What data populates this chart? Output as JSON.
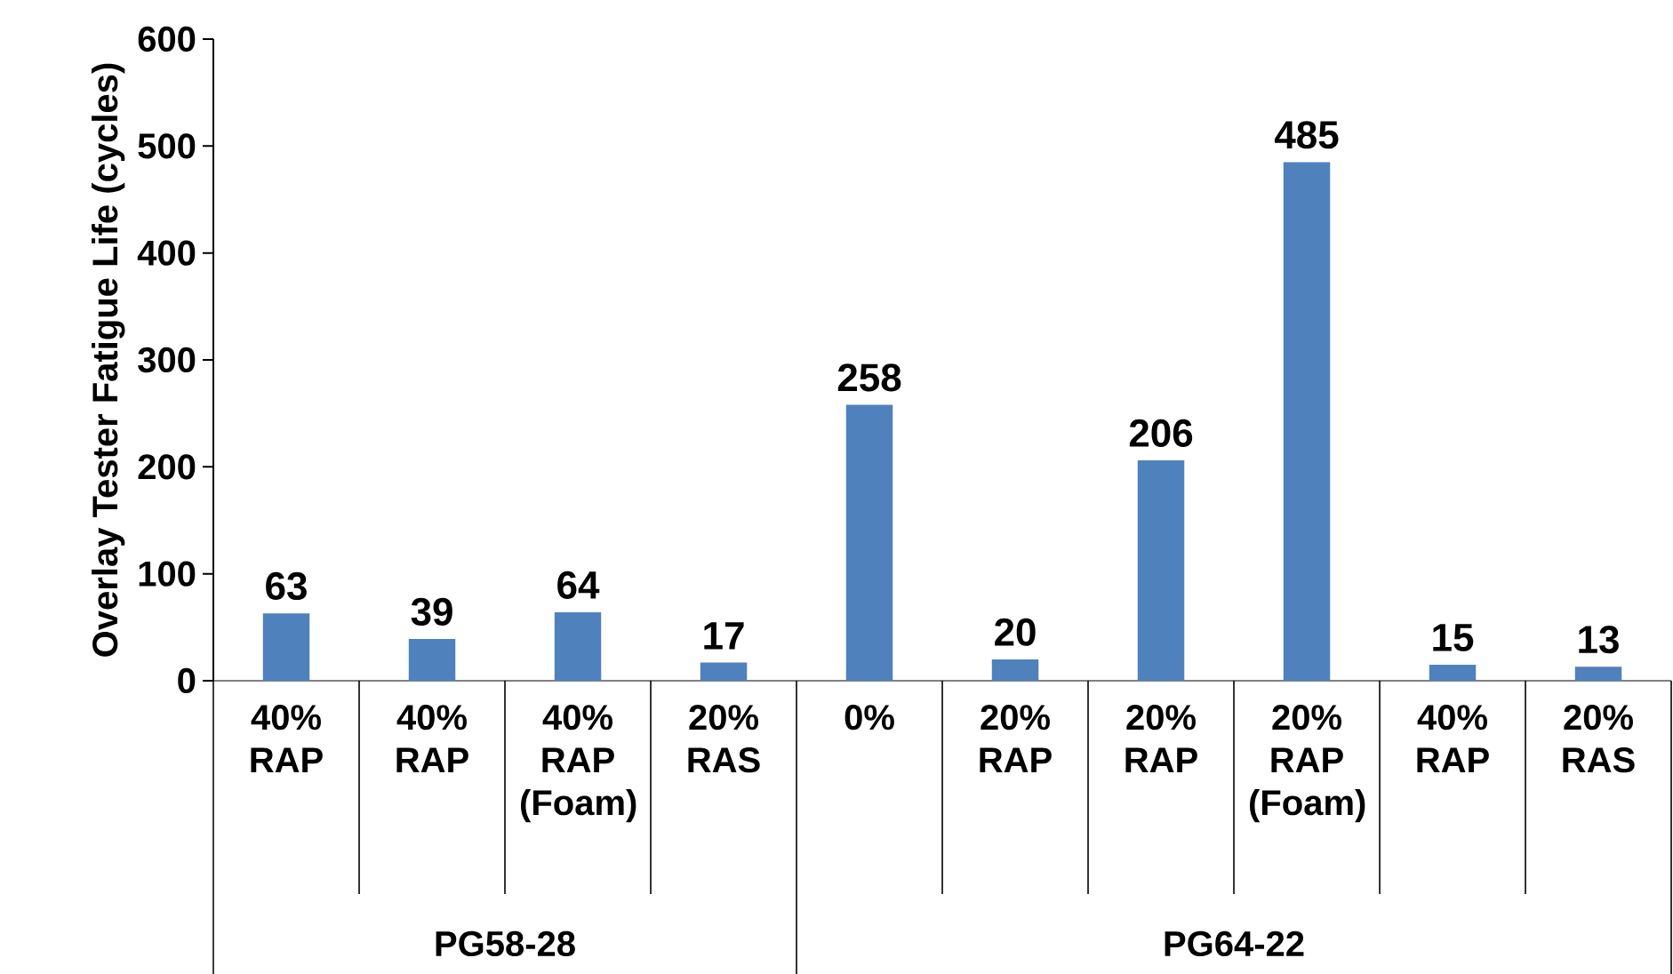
{
  "chart_data": {
    "type": "bar",
    "ylabel": "Overlay Tester Fatigue Life (cycles)",
    "categories": [
      "40% RAP",
      "40% RAP",
      "40% RAP (Foam)",
      "20% RAS",
      "0%",
      "20% RAP",
      "20% RAP",
      "20% RAP (Foam)",
      "40% RAP",
      "20% RAS"
    ],
    "values": [
      63,
      39,
      64,
      17,
      258,
      20,
      206,
      485,
      15,
      13
    ],
    "color": "#4f81bd",
    "data_labels": true,
    "ylim": [
      0,
      600
    ],
    "yticks": [
      0,
      100,
      200,
      300,
      400,
      500,
      600
    ],
    "annotations": [
      "PG58-28",
      "PG64-22"
    ]
  }
}
